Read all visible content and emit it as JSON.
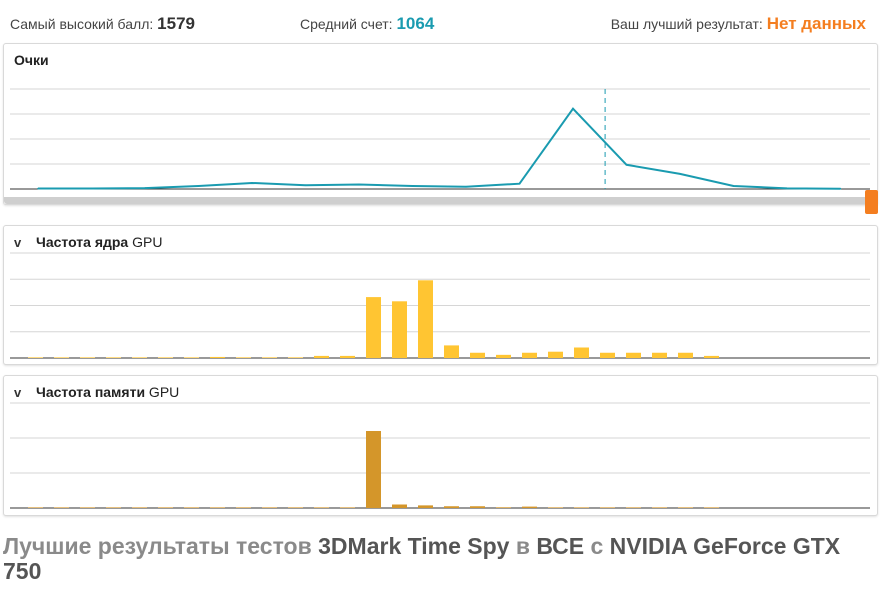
{
  "stats": {
    "high_label": "Самый высокий балл:",
    "high_value": "1579",
    "avg_label": "Средний счет:",
    "avg_value": "1064",
    "best_label": "Ваш лучший результат:",
    "best_value": "Нет данных"
  },
  "panels": {
    "score": {
      "title": "Очки"
    },
    "core": {
      "title_bold": "Частота ядра",
      "title_suffix": " GPU",
      "chevron": "v"
    },
    "mem": {
      "title_bold": "Частота памяти",
      "title_suffix": " GPU",
      "chevron": "v"
    }
  },
  "heading": {
    "part1": "Лучшие результаты тестов ",
    "part2": "3DMark Time Spy",
    "part3": " в ",
    "part4": "ВСЕ",
    "part5": " с ",
    "part6": "NVIDIA GeForce GTX 750"
  },
  "colors": {
    "line": "#1a9bb0",
    "core_bar": "#ffc532",
    "mem_bar": "#d4962a",
    "accent": "#f47e20"
  },
  "chart_data": [
    {
      "type": "line",
      "name": "score",
      "x": [
        0,
        1,
        2,
        3,
        4,
        5,
        6,
        7,
        8,
        9,
        10,
        11,
        12,
        13,
        14,
        15
      ],
      "values": [
        0.3,
        0.3,
        0.6,
        2,
        4,
        2.5,
        3,
        2,
        1.5,
        3.5,
        53,
        16,
        10,
        2,
        0.4,
        0.2
      ],
      "ylim": [
        0,
        66
      ],
      "marker_x": 10.6,
      "grid": true
    },
    {
      "type": "bar",
      "name": "core_clock",
      "values": [
        0.2,
        0.2,
        0.2,
        0.2,
        0.2,
        0.2,
        0.2,
        0.5,
        0.3,
        0.3,
        0.3,
        1,
        1,
        29,
        27,
        37,
        6,
        2.5,
        1.5,
        2.5,
        3,
        5,
        2.5,
        2.5,
        2.5,
        2.5,
        1
      ],
      "ylim": [
        0,
        50
      ],
      "grid": true
    },
    {
      "type": "bar",
      "name": "memory_clock",
      "values": [
        0.2,
        0.2,
        0.2,
        0.2,
        0.2,
        0.2,
        0.2,
        0.2,
        0.2,
        0.2,
        0.2,
        0.2,
        0.2,
        44,
        2,
        1.5,
        1,
        1,
        0.4,
        0.8,
        0.3,
        0.3,
        0.3,
        0.3,
        0.3,
        0.3,
        0.3
      ],
      "ylim": [
        0,
        60
      ],
      "grid": true
    }
  ]
}
